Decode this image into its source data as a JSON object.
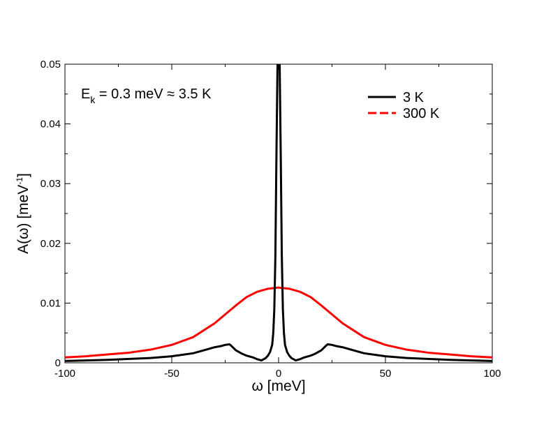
{
  "chart_data": {
    "type": "line",
    "title": "",
    "xlabel": "ω [meV]",
    "ylabel_main": "A(ω) [meV",
    "ylabel_sup": "-1",
    "ylabel_close": "]",
    "xlim": [
      -100,
      100
    ],
    "ylim": [
      0,
      0.05
    ],
    "xticks": [
      -100,
      -50,
      0,
      50,
      100
    ],
    "xtick_labels": [
      "-100",
      "-50",
      "0",
      "50",
      "100"
    ],
    "yticks": [
      0,
      0.01,
      0.02,
      0.03,
      0.04,
      0.05
    ],
    "ytick_labels": [
      "0",
      "0.01",
      "0.02",
      "0.03",
      "0.04",
      "0.05"
    ],
    "grid": false,
    "legend_position": "top-right",
    "annotation": {
      "base": "E",
      "sub": "k",
      "rest": " = 0.3 meV ≈ 3.5 K"
    },
    "series": [
      {
        "name": "3 K",
        "color": "#000000",
        "style": "solid",
        "x": [
          -100,
          -80,
          -60,
          -50,
          -40,
          -35,
          -30,
          -27,
          -25,
          -23,
          -22,
          -20,
          -17,
          -15,
          -12,
          -10,
          -8,
          -6,
          -5,
          -4,
          -3,
          -2.5,
          -2,
          -1.5,
          -1,
          -0.5,
          0,
          0.5,
          1,
          1.5,
          2,
          2.5,
          3,
          4,
          5,
          6,
          8,
          10,
          12,
          15,
          17,
          20,
          22,
          23,
          25,
          27,
          30,
          35,
          40,
          50,
          60,
          80,
          100
        ],
        "y": [
          0.0003,
          0.0005,
          0.0008,
          0.0011,
          0.0016,
          0.0021,
          0.0026,
          0.0028,
          0.003,
          0.0031,
          0.0028,
          0.0021,
          0.0015,
          0.0012,
          0.0009,
          0.0006,
          0.0004,
          0.0008,
          0.0012,
          0.0018,
          0.003,
          0.005,
          0.009,
          0.018,
          0.035,
          0.05,
          0.05,
          0.05,
          0.035,
          0.018,
          0.009,
          0.005,
          0.003,
          0.0018,
          0.0012,
          0.0008,
          0.0004,
          0.0006,
          0.0009,
          0.0012,
          0.0015,
          0.0021,
          0.0028,
          0.0031,
          0.003,
          0.0028,
          0.0026,
          0.0021,
          0.0016,
          0.0011,
          0.0008,
          0.0005,
          0.0003
        ]
      },
      {
        "name": "300 K",
        "color": "#ff0000",
        "style": "dashed",
        "x": [
          -100,
          -90,
          -80,
          -70,
          -60,
          -50,
          -40,
          -30,
          -25,
          -20,
          -15,
          -10,
          -5,
          0,
          5,
          10,
          15,
          20,
          25,
          30,
          40,
          50,
          60,
          70,
          80,
          90,
          100
        ],
        "y": [
          0.0009,
          0.0011,
          0.0014,
          0.0017,
          0.0022,
          0.003,
          0.0043,
          0.0066,
          0.0081,
          0.0096,
          0.011,
          0.0119,
          0.0124,
          0.0126,
          0.0124,
          0.0119,
          0.011,
          0.0096,
          0.0081,
          0.0066,
          0.0043,
          0.003,
          0.0022,
          0.0017,
          0.0014,
          0.0011,
          0.0009
        ]
      }
    ]
  }
}
